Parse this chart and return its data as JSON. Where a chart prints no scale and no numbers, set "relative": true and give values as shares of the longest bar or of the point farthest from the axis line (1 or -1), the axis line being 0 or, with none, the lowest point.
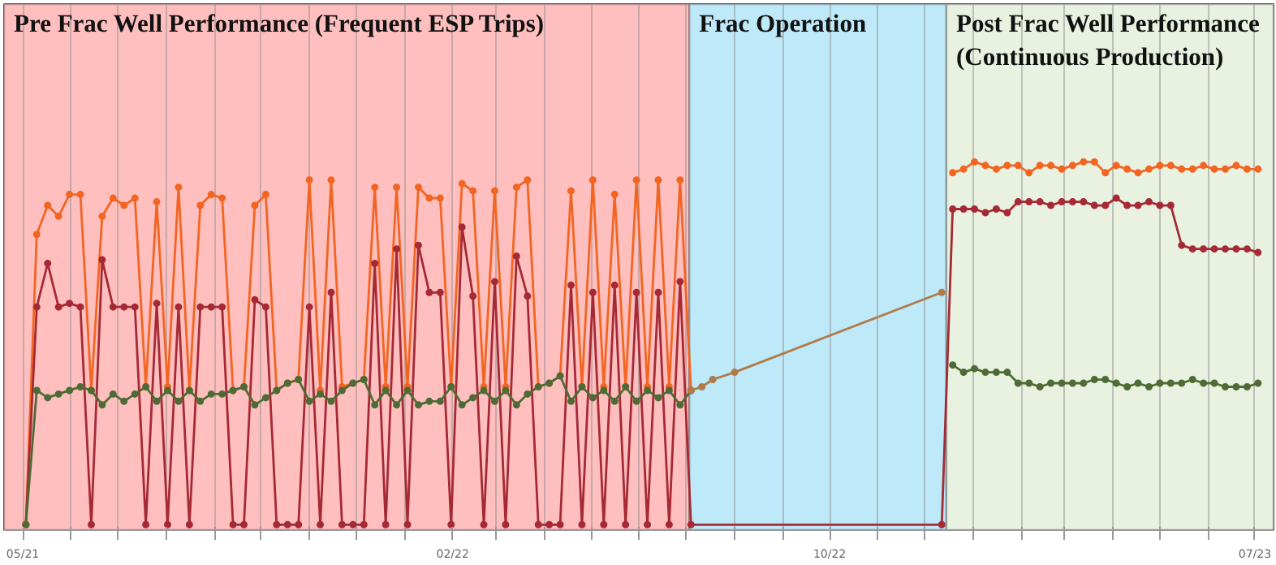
{
  "chart_data": {
    "type": "line",
    "relative": true,
    "marker": "circle",
    "line_style": "solid",
    "grid": "x",
    "xlim": [
      "2021-04-19",
      "2023-07-13"
    ],
    "xticks": [
      {
        "value": "2021-05-01",
        "label": "05/21"
      },
      {
        "value": "2021-06-01",
        "label": null
      },
      {
        "value": "2021-07-01",
        "label": null
      },
      {
        "value": "2021-08-01",
        "label": null
      },
      {
        "value": "2021-09-01",
        "label": null
      },
      {
        "value": "2021-10-01",
        "label": null
      },
      {
        "value": "2021-11-01",
        "label": null
      },
      {
        "value": "2021-12-01",
        "label": null
      },
      {
        "value": "2022-01-01",
        "label": null
      },
      {
        "value": "2022-02-01",
        "label": "02/22"
      },
      {
        "value": "2022-03-01",
        "label": null
      },
      {
        "value": "2022-04-01",
        "label": null
      },
      {
        "value": "2022-05-01",
        "label": null
      },
      {
        "value": "2022-06-01",
        "label": null
      },
      {
        "value": "2022-07-01",
        "label": null
      },
      {
        "value": "2022-08-01",
        "label": null
      },
      {
        "value": "2022-09-01",
        "label": null
      },
      {
        "value": "2022-10-01",
        "label": "10/22"
      },
      {
        "value": "2022-11-01",
        "label": null
      },
      {
        "value": "2022-12-01",
        "label": null
      },
      {
        "value": "2023-01-01",
        "label": null
      },
      {
        "value": "2023-02-01",
        "label": null
      },
      {
        "value": "2023-03-01",
        "label": null
      },
      {
        "value": "2023-04-01",
        "label": null
      },
      {
        "value": "2023-05-01",
        "label": null
      },
      {
        "value": "2023-06-01",
        "label": null
      },
      {
        "value": "2023-07-01",
        "label": "07/23"
      }
    ],
    "bands": [
      {
        "axis": "x",
        "from": "2021-04-19",
        "to": "2022-07-03",
        "label": "Pre Frac Well Performance (Frequent ESP Trips)",
        "color": "#ffbfbf"
      },
      {
        "axis": "x",
        "from": "2022-07-03",
        "to": "2022-12-15",
        "label": "Frac Operation",
        "color": "#bee9f8"
      },
      {
        "axis": "x",
        "from": "2022-12-15",
        "to": "2023-07-13",
        "label": "Post Frac Well Performance\n(Continuous Production)",
        "color": "#e9f1e0"
      }
    ],
    "series": [
      {
        "color": "#f26522",
        "x": [
          "2021-05-03",
          "2021-05-10",
          "2021-05-17",
          "2021-05-24",
          "2021-05-31",
          "2021-06-07",
          "2021-06-14",
          "2021-06-21",
          "2021-06-28",
          "2021-07-05",
          "2021-07-12",
          "2021-07-19",
          "2021-07-26",
          "2021-08-02",
          "2021-08-09",
          "2021-08-16",
          "2021-08-23",
          "2021-08-30",
          "2021-09-06",
          "2021-09-13",
          "2021-09-20",
          "2021-09-27",
          "2021-10-04",
          "2021-10-11",
          "2021-10-18",
          "2021-10-25",
          "2021-11-01",
          "2021-11-08",
          "2021-11-15",
          "2021-11-22",
          "2021-11-29",
          "2021-12-06",
          "2021-12-13",
          "2021-12-20",
          "2021-12-27",
          "2022-01-03",
          "2022-01-10",
          "2022-01-17",
          "2022-01-24",
          "2022-01-31",
          "2022-02-07",
          "2022-02-14",
          "2022-02-21",
          "2022-02-28",
          "2022-03-07",
          "2022-03-14",
          "2022-03-21",
          "2022-03-28",
          "2022-04-04",
          "2022-04-11",
          "2022-04-18",
          "2022-04-25",
          "2022-05-02",
          "2022-05-09",
          "2022-05-16",
          "2022-05-23",
          "2022-05-30",
          "2022-06-06",
          "2022-06-13",
          "2022-06-20",
          "2022-06-27",
          "2022-07-04",
          null,
          "2022-12-19",
          "2022-12-26",
          "2023-01-02",
          "2023-01-09",
          "2023-01-16",
          "2023-01-23",
          "2023-01-30",
          "2023-02-06",
          "2023-02-13",
          "2023-02-20",
          "2023-02-27",
          "2023-03-06",
          "2023-03-13",
          "2023-03-20",
          "2023-03-27",
          "2023-04-03",
          "2023-04-10",
          "2023-04-17",
          "2023-04-24",
          "2023-05-01",
          "2023-05-08",
          "2023-05-15",
          "2023-05-22",
          "2023-05-29",
          "2023-06-05",
          "2023-06-12",
          "2023-06-19",
          "2023-06-26",
          "2023-07-03"
        ],
        "values": [
          0,
          0.8,
          0.88,
          0.85,
          0.91,
          0.91,
          0.37,
          0.85,
          0.9,
          0.88,
          0.9,
          0.38,
          0.89,
          0.38,
          0.93,
          0.37,
          0.88,
          0.91,
          0.9,
          0.37,
          0.38,
          0.88,
          0.91,
          0.37,
          0.39,
          0.4,
          0.95,
          0.37,
          0.95,
          0.38,
          0.39,
          0.4,
          0.93,
          0.38,
          0.93,
          0.38,
          0.93,
          0.9,
          0.9,
          0.38,
          0.94,
          0.92,
          0.38,
          0.92,
          0.38,
          0.93,
          0.95,
          0.38,
          0.39,
          0.41,
          0.92,
          0.38,
          0.95,
          0.38,
          0.91,
          0.38,
          0.95,
          0.38,
          0.95,
          0.38,
          0.95,
          0.37,
          null,
          0.97,
          0.98,
          1.0,
          0.99,
          0.98,
          0.99,
          0.99,
          0.97,
          0.99,
          0.99,
          0.98,
          0.99,
          1.0,
          1.0,
          0.97,
          0.99,
          0.98,
          0.97,
          0.98,
          0.99,
          0.99,
          0.98,
          0.98,
          0.99,
          0.98,
          0.98,
          0.99,
          0.98,
          0.98
        ]
      },
      {
        "color": "#a52a35",
        "x": [
          "2021-05-03",
          "2021-05-10",
          "2021-05-17",
          "2021-05-24",
          "2021-05-31",
          "2021-06-07",
          "2021-06-14",
          "2021-06-21",
          "2021-06-28",
          "2021-07-05",
          "2021-07-12",
          "2021-07-19",
          "2021-07-26",
          "2021-08-02",
          "2021-08-09",
          "2021-08-16",
          "2021-08-23",
          "2021-08-30",
          "2021-09-06",
          "2021-09-13",
          "2021-09-20",
          "2021-09-27",
          "2021-10-04",
          "2021-10-11",
          "2021-10-18",
          "2021-10-25",
          "2021-11-01",
          "2021-11-08",
          "2021-11-15",
          "2021-11-22",
          "2021-11-29",
          "2021-12-06",
          "2021-12-13",
          "2021-12-20",
          "2021-12-27",
          "2022-01-03",
          "2022-01-10",
          "2022-01-17",
          "2022-01-24",
          "2022-01-31",
          "2022-02-07",
          "2022-02-14",
          "2022-02-21",
          "2022-02-28",
          "2022-03-07",
          "2022-03-14",
          "2022-03-21",
          "2022-03-28",
          "2022-04-04",
          "2022-04-11",
          "2022-04-18",
          "2022-04-25",
          "2022-05-02",
          "2022-05-09",
          "2022-05-16",
          "2022-05-23",
          "2022-05-30",
          "2022-06-06",
          "2022-06-13",
          "2022-06-20",
          "2022-06-27",
          "2022-07-04",
          "2022-12-12",
          "2022-12-19",
          "2022-12-26",
          "2023-01-02",
          "2023-01-09",
          "2023-01-16",
          "2023-01-23",
          "2023-01-30",
          "2023-02-06",
          "2023-02-13",
          "2023-02-20",
          "2023-02-27",
          "2023-03-06",
          "2023-03-13",
          "2023-03-20",
          "2023-03-27",
          "2023-04-03",
          "2023-04-10",
          "2023-04-17",
          "2023-04-24",
          "2023-05-01",
          "2023-05-08",
          "2023-05-15",
          "2023-05-22",
          "2023-05-29",
          "2023-06-05",
          "2023-06-12",
          "2023-06-19",
          "2023-06-26",
          "2023-07-03"
        ],
        "values": [
          0,
          0.6,
          0.72,
          0.6,
          0.61,
          0.6,
          0,
          0.73,
          0.6,
          0.6,
          0.6,
          0,
          0.61,
          0,
          0.6,
          0,
          0.6,
          0.6,
          0.6,
          0,
          0,
          0.62,
          0.6,
          0,
          0,
          0,
          0.6,
          0,
          0.64,
          0,
          0,
          0,
          0.72,
          0,
          0.76,
          0,
          0.77,
          0.64,
          0.64,
          0,
          0.82,
          0.63,
          0,
          0.67,
          0,
          0.74,
          0.63,
          0,
          0,
          0,
          0.66,
          0,
          0.64,
          0,
          0.66,
          0,
          0.64,
          0,
          0.64,
          0,
          0.67,
          0,
          0,
          0.87,
          0.87,
          0.87,
          0.86,
          0.87,
          0.86,
          0.89,
          0.89,
          0.89,
          0.88,
          0.89,
          0.89,
          0.89,
          0.88,
          0.88,
          0.9,
          0.88,
          0.88,
          0.89,
          0.88,
          0.88,
          0.77,
          0.76,
          0.76,
          0.76,
          0.76,
          0.76,
          0.76,
          0.75
        ]
      },
      {
        "color": "#4f6b35",
        "x": [
          "2021-05-03",
          "2021-05-10",
          "2021-05-17",
          "2021-05-24",
          "2021-05-31",
          "2021-06-07",
          "2021-06-14",
          "2021-06-21",
          "2021-06-28",
          "2021-07-05",
          "2021-07-12",
          "2021-07-19",
          "2021-07-26",
          "2021-08-02",
          "2021-08-09",
          "2021-08-16",
          "2021-08-23",
          "2021-08-30",
          "2021-09-06",
          "2021-09-13",
          "2021-09-20",
          "2021-09-27",
          "2021-10-04",
          "2021-10-11",
          "2021-10-18",
          "2021-10-25",
          "2021-11-01",
          "2021-11-08",
          "2021-11-15",
          "2021-11-22",
          "2021-11-29",
          "2021-12-06",
          "2021-12-13",
          "2021-12-20",
          "2021-12-27",
          "2022-01-03",
          "2022-01-10",
          "2022-01-17",
          "2022-01-24",
          "2022-01-31",
          "2022-02-07",
          "2022-02-14",
          "2022-02-21",
          "2022-02-28",
          "2022-03-07",
          "2022-03-14",
          "2022-03-21",
          "2022-03-28",
          "2022-04-04",
          "2022-04-11",
          "2022-04-18",
          "2022-04-25",
          "2022-05-02",
          "2022-05-09",
          "2022-05-16",
          "2022-05-23",
          "2022-05-30",
          "2022-06-06",
          "2022-06-13",
          "2022-06-20",
          "2022-06-27",
          "2022-07-04",
          null,
          "2022-12-19",
          "2022-12-26",
          "2023-01-02",
          "2023-01-09",
          "2023-01-16",
          "2023-01-23",
          "2023-01-30",
          "2023-02-06",
          "2023-02-13",
          "2023-02-20",
          "2023-02-27",
          "2023-03-06",
          "2023-03-13",
          "2023-03-20",
          "2023-03-27",
          "2023-04-03",
          "2023-04-10",
          "2023-04-17",
          "2023-04-24",
          "2023-05-01",
          "2023-05-08",
          "2023-05-15",
          "2023-05-22",
          "2023-05-29",
          "2023-06-05",
          "2023-06-12",
          "2023-06-19",
          "2023-06-26",
          "2023-07-03"
        ],
        "values": [
          0,
          0.37,
          0.35,
          0.36,
          0.37,
          0.38,
          0.37,
          0.33,
          0.36,
          0.34,
          0.36,
          0.38,
          0.34,
          0.37,
          0.34,
          0.37,
          0.34,
          0.36,
          0.36,
          0.37,
          0.38,
          0.33,
          0.35,
          0.37,
          0.39,
          0.4,
          0.34,
          0.36,
          0.34,
          0.37,
          0.39,
          0.4,
          0.33,
          0.37,
          0.33,
          0.37,
          0.33,
          0.34,
          0.34,
          0.38,
          0.33,
          0.35,
          0.37,
          0.34,
          0.37,
          0.33,
          0.36,
          0.38,
          0.39,
          0.41,
          0.34,
          0.38,
          0.35,
          0.37,
          0.34,
          0.38,
          0.34,
          0.37,
          0.35,
          0.37,
          0.33,
          0.37,
          null,
          0.44,
          0.42,
          0.43,
          0.42,
          0.42,
          0.42,
          0.39,
          0.39,
          0.38,
          0.39,
          0.39,
          0.39,
          0.39,
          0.4,
          0.4,
          0.39,
          0.38,
          0.39,
          0.38,
          0.39,
          0.39,
          0.39,
          0.4,
          0.39,
          0.39,
          0.38,
          0.38,
          0.38,
          0.39
        ]
      },
      {
        "color": "#b07a4a",
        "x": [
          "2022-07-04",
          "2022-07-11",
          "2022-07-18",
          "2022-08-01",
          "2022-12-12"
        ],
        "values": [
          0.37,
          0.38,
          0.4,
          0.42,
          0.64
        ]
      }
    ]
  }
}
